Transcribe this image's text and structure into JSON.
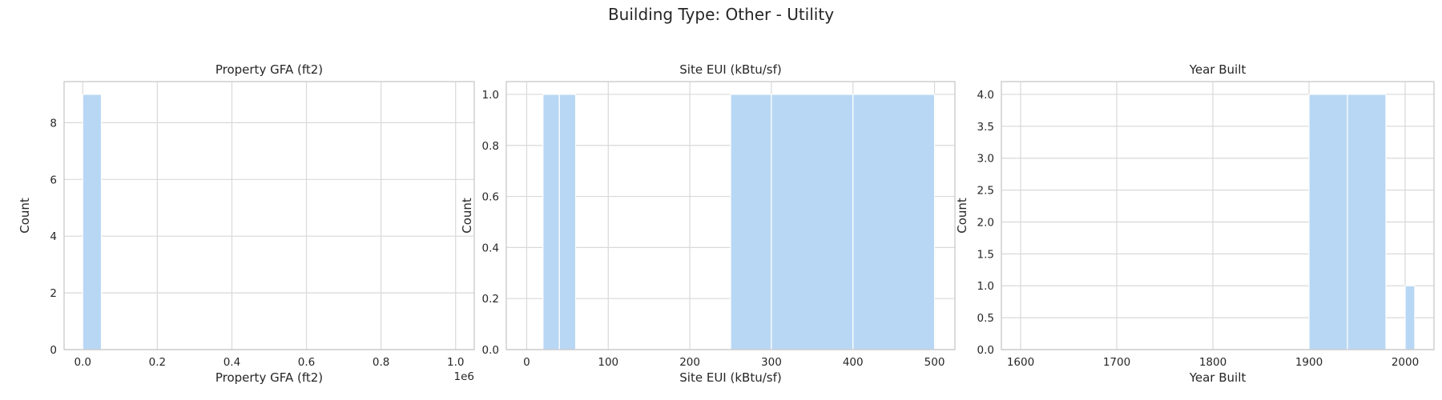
{
  "figure": {
    "title": "Building Type: Other - Utility"
  },
  "colors": {
    "bar": "#b8d7f4",
    "grid": "#d9d9d9",
    "spine": "#c8c8c8",
    "text": "#262626"
  },
  "chart_data": [
    {
      "type": "bar",
      "title": "Property GFA (ft2)",
      "xlabel": "Property GFA (ft2)",
      "ylabel": "Count",
      "x_offset_label": "1e6",
      "xlim": [
        -0.05,
        1.05
      ],
      "ylim": [
        0,
        9.45
      ],
      "xticks": [
        0.0,
        0.2,
        0.4,
        0.6,
        0.8,
        1.0
      ],
      "xtick_labels": [
        "0.0",
        "0.2",
        "0.4",
        "0.6",
        "0.8",
        "1.0"
      ],
      "yticks": [
        0,
        2,
        4,
        6,
        8
      ],
      "ytick_labels": [
        "0",
        "2",
        "4",
        "6",
        "8"
      ],
      "grid": true,
      "bins": [
        {
          "x0": 0.0,
          "x1": 0.05,
          "count": 9
        }
      ]
    },
    {
      "type": "bar",
      "title": "Site EUI (kBtu/sf)",
      "xlabel": "Site EUI (kBtu/sf)",
      "ylabel": "Count",
      "xlim": [
        -25,
        525
      ],
      "ylim": [
        0,
        1.05
      ],
      "xticks": [
        0,
        100,
        200,
        300,
        400,
        500
      ],
      "xtick_labels": [
        "0",
        "100",
        "200",
        "300",
        "400",
        "500"
      ],
      "yticks": [
        0,
        0.2,
        0.4,
        0.6,
        0.8,
        1.0
      ],
      "ytick_labels": [
        "0.0",
        "0.2",
        "0.4",
        "0.6",
        "0.8",
        "1.0"
      ],
      "grid": true,
      "bins": [
        {
          "x0": 20,
          "x1": 40,
          "count": 1
        },
        {
          "x0": 40,
          "x1": 60,
          "count": 1
        },
        {
          "x0": 250,
          "x1": 300,
          "count": 1
        },
        {
          "x0": 300,
          "x1": 400,
          "count": 1
        },
        {
          "x0": 400,
          "x1": 500,
          "count": 1
        }
      ]
    },
    {
      "type": "bar",
      "title": "Year Built",
      "xlabel": "Year Built",
      "ylabel": "Count",
      "xlim": [
        1580,
        2030
      ],
      "ylim": [
        0,
        4.2
      ],
      "xticks": [
        1600,
        1700,
        1800,
        1900,
        2000
      ],
      "xtick_labels": [
        "1600",
        "1700",
        "1800",
        "1900",
        "2000"
      ],
      "yticks": [
        0,
        0.5,
        1.0,
        1.5,
        2.0,
        2.5,
        3.0,
        3.5,
        4.0
      ],
      "ytick_labels": [
        "0.0",
        "0.5",
        "1.0",
        "1.5",
        "2.0",
        "2.5",
        "3.0",
        "3.5",
        "4.0"
      ],
      "grid": true,
      "bins": [
        {
          "x0": 1900,
          "x1": 1940,
          "count": 4
        },
        {
          "x0": 1940,
          "x1": 1980,
          "count": 4
        },
        {
          "x0": 2000,
          "x1": 2010,
          "count": 1
        }
      ]
    }
  ]
}
